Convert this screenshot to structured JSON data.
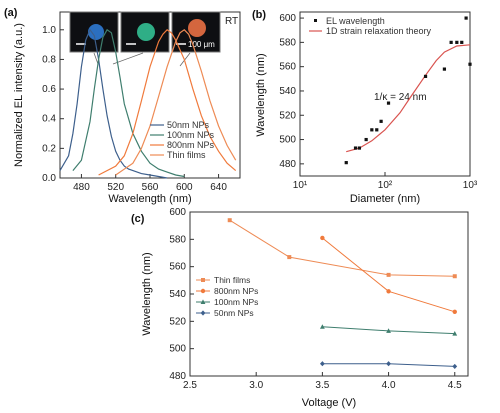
{
  "panels": {
    "a": "(a)",
    "b": "(b)",
    "c": "(c)"
  },
  "colors": {
    "n50": "#3d5f8c",
    "n100": "#3f7e6e",
    "n800": "#f07a3c",
    "thin": "#ee8b55",
    "fit": "#d9534f",
    "dots": "#111111"
  },
  "insets": {
    "rt_label": "RT",
    "scale_label": "100 μm",
    "dot_colors": [
      "#2b6fc0",
      "#2fae86",
      "#d4663e"
    ]
  },
  "chart_data": [
    {
      "id": "a",
      "type": "line",
      "xlabel": "Wavelength (nm)",
      "ylabel": "Normalized EL intensity (a.u.)",
      "xlim": [
        455,
        665
      ],
      "ylim": [
        0,
        1.12
      ],
      "xticks": [
        480,
        520,
        560,
        600,
        640
      ],
      "yticks": [
        0.0,
        0.2,
        0.4,
        0.6,
        0.8,
        1.0
      ],
      "ytick_labels": [
        "0.0",
        "0.2",
        "0.4",
        "0.6",
        "0.8",
        "1.0"
      ],
      "legend": [
        "50nm NPs",
        "100nm NPs",
        "800nm NPs",
        "Thin films"
      ],
      "series": [
        {
          "name": "50nm NPs",
          "color_key": "n50",
          "x": [
            455,
            465,
            470,
            475,
            480,
            485,
            490,
            495,
            500,
            505,
            510,
            515,
            520,
            525,
            530,
            535,
            540,
            550,
            560,
            570,
            580
          ],
          "y": [
            0.05,
            0.15,
            0.3,
            0.5,
            0.75,
            0.93,
            1.0,
            0.96,
            0.8,
            0.6,
            0.42,
            0.28,
            0.18,
            0.12,
            0.08,
            0.06,
            0.05,
            0.03,
            0.02,
            0.01,
            0.0
          ]
        },
        {
          "name": "100nm NPs",
          "color_key": "n100",
          "x": [
            470,
            480,
            490,
            495,
            500,
            505,
            510,
            515,
            520,
            525,
            530,
            540,
            550,
            560,
            570,
            580,
            590,
            600
          ],
          "y": [
            0.05,
            0.12,
            0.38,
            0.6,
            0.8,
            0.95,
            1.0,
            0.98,
            0.85,
            0.68,
            0.5,
            0.3,
            0.18,
            0.1,
            0.06,
            0.04,
            0.02,
            0.01
          ]
        },
        {
          "name": "800nm NPs",
          "color_key": "n800",
          "x": [
            500,
            520,
            530,
            540,
            550,
            560,
            570,
            575,
            580,
            585,
            590,
            600,
            610,
            620,
            630,
            640,
            650,
            660
          ],
          "y": [
            0.02,
            0.08,
            0.15,
            0.3,
            0.52,
            0.75,
            0.92,
            0.97,
            1.0,
            0.98,
            0.93,
            0.8,
            0.6,
            0.42,
            0.28,
            0.18,
            0.1,
            0.05
          ]
        },
        {
          "name": "Thin films",
          "color_key": "thin",
          "x": [
            520,
            540,
            550,
            560,
            570,
            580,
            590,
            595,
            600,
            605,
            610,
            620,
            630,
            640,
            650,
            660
          ],
          "y": [
            0.02,
            0.1,
            0.2,
            0.35,
            0.55,
            0.75,
            0.92,
            0.98,
            1.0,
            0.97,
            0.9,
            0.72,
            0.52,
            0.35,
            0.22,
            0.12
          ]
        }
      ]
    },
    {
      "id": "b",
      "type": "scatter",
      "xlabel": "Diameter (nm)",
      "ylabel": "Wavelength (nm)",
      "xscale": "log",
      "xlim": [
        10,
        1000
      ],
      "ylim": [
        470,
        605
      ],
      "xticks": [
        10,
        100,
        1000
      ],
      "xtick_labels": [
        "10¹",
        "10²",
        "10³"
      ],
      "yticks": [
        480,
        500,
        520,
        540,
        560,
        580,
        600
      ],
      "legend": [
        "EL wavelength",
        "1D strain relaxation theory"
      ],
      "annotation": "1/κ = 24 nm",
      "series": [
        {
          "name": "EL wavelength",
          "color_key": "dots",
          "x": [
            35,
            45,
            50,
            60,
            70,
            80,
            90,
            110,
            300,
            500,
            600,
            700,
            800,
            900,
            1000
          ],
          "y": [
            481,
            493,
            493,
            500,
            508,
            508,
            515,
            530,
            552,
            558,
            580,
            580,
            580,
            600,
            562
          ]
        },
        {
          "name": "1D strain relaxation theory",
          "color_key": "fit",
          "x": [
            35,
            50,
            70,
            100,
            150,
            200,
            300,
            400,
            500,
            700,
            1000
          ],
          "y": [
            490,
            493,
            499,
            508,
            522,
            535,
            553,
            565,
            572,
            577,
            578
          ]
        }
      ]
    },
    {
      "id": "c",
      "type": "line",
      "xlabel": "Voltage (V)",
      "ylabel": "Wavelength (nm)",
      "xlim": [
        2.5,
        4.6
      ],
      "ylim": [
        480,
        600
      ],
      "xticks": [
        2.5,
        3.0,
        3.5,
        4.0,
        4.5
      ],
      "xtick_labels": [
        "2.5",
        "3.0",
        "3.5",
        "4.0",
        "4.5"
      ],
      "yticks": [
        480,
        500,
        520,
        540,
        560,
        580,
        600
      ],
      "legend": [
        "Thin films",
        "800nm NPs",
        "100nm NPs",
        "50nm NPs"
      ],
      "series": [
        {
          "name": "Thin films",
          "color_key": "thin",
          "x": [
            2.8,
            3.25,
            4.0,
            4.5
          ],
          "y": [
            594,
            567,
            554,
            553
          ]
        },
        {
          "name": "800nm NPs",
          "color_key": "n800",
          "x": [
            3.5,
            4.0,
            4.5
          ],
          "y": [
            581,
            542,
            527
          ]
        },
        {
          "name": "100nm NPs",
          "color_key": "n100",
          "x": [
            3.5,
            4.0,
            4.5
          ],
          "y": [
            516,
            513,
            511
          ]
        },
        {
          "name": "50nm NPs",
          "color_key": "n50",
          "x": [
            3.5,
            4.0,
            4.5
          ],
          "y": [
            489,
            489,
            487
          ]
        }
      ]
    }
  ]
}
